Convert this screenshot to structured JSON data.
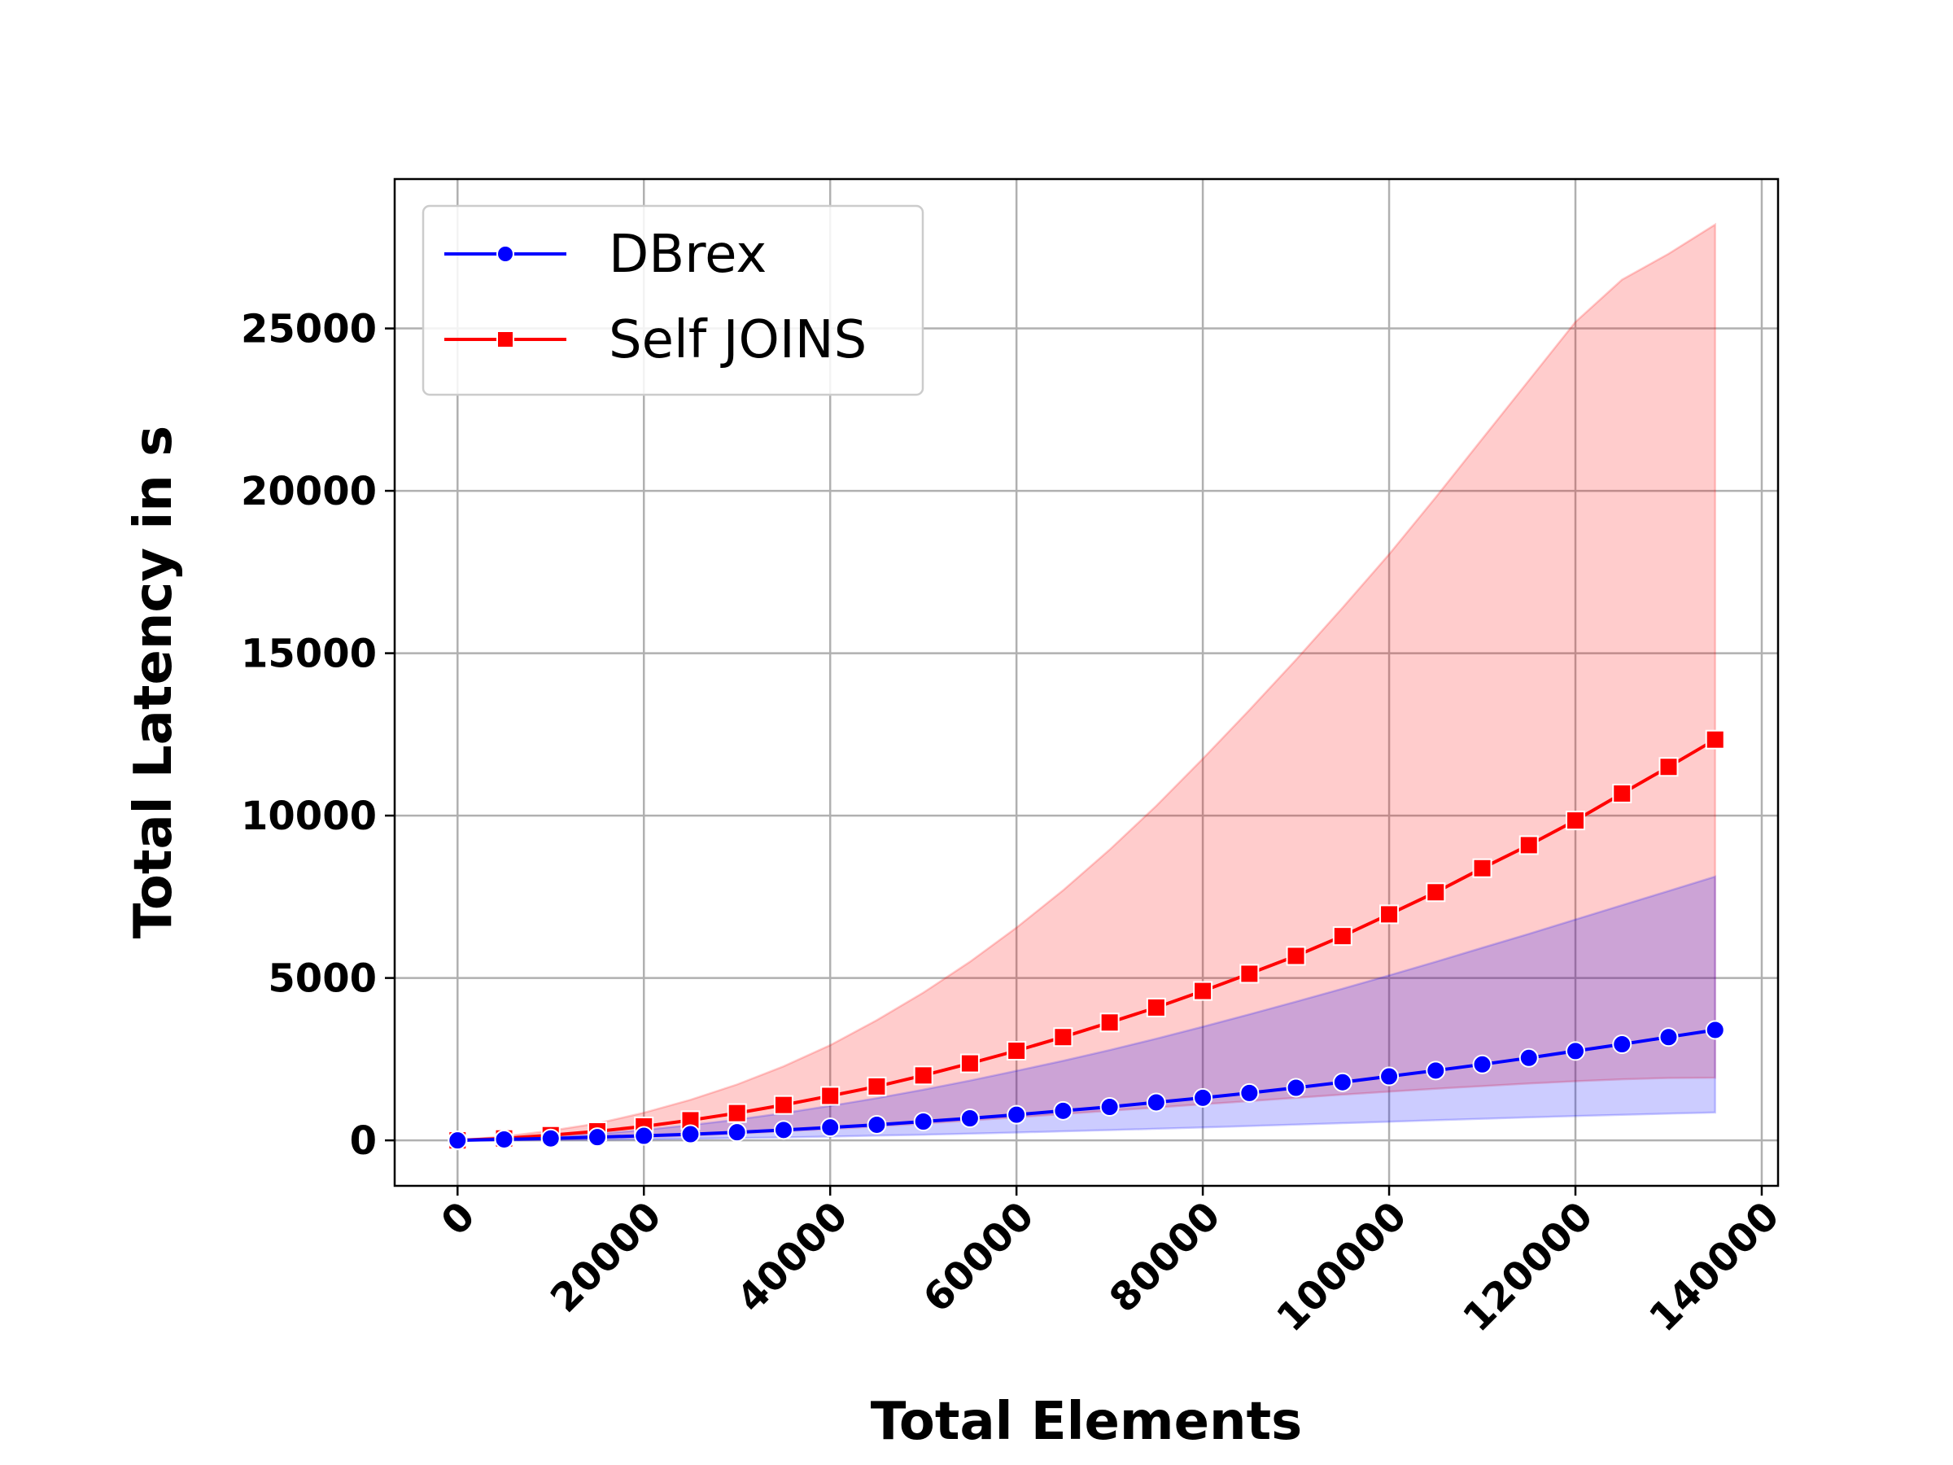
{
  "chart_data": {
    "type": "line",
    "title": "",
    "xlabel": "Total Elements",
    "ylabel": "Total Latency in s",
    "xlim": [
      -6750,
      141750
    ],
    "ylim": [
      -1400,
      29600
    ],
    "xticks": [
      0,
      20000,
      40000,
      60000,
      80000,
      100000,
      120000,
      140000
    ],
    "yticks": [
      0,
      5000,
      10000,
      15000,
      20000,
      25000
    ],
    "x_tick_labels": [
      "0",
      "20000",
      "40000",
      "60000",
      "80000",
      "100000",
      "120000",
      "140000"
    ],
    "y_tick_labels": [
      "0",
      "5000",
      "10000",
      "15000",
      "20000",
      "25000"
    ],
    "x_tick_rotation": 45,
    "grid": true,
    "legend_position": "upper-left",
    "x": [
      0,
      5000,
      10000,
      15000,
      20000,
      25000,
      30000,
      35000,
      40000,
      45000,
      50000,
      55000,
      60000,
      65000,
      70000,
      75000,
      80000,
      85000,
      90000,
      95000,
      100000,
      105000,
      110000,
      115000,
      120000,
      125000,
      130000,
      135000
    ],
    "series": [
      {
        "name": "DBrex",
        "color": "#0000ff",
        "marker": "circle",
        "values": [
          0,
          30,
          60,
          100,
          140,
          190,
          250,
          320,
          400,
          480,
          580,
          680,
          790,
          910,
          1030,
          1170,
          1310,
          1460,
          1620,
          1790,
          1970,
          2150,
          2340,
          2540,
          2750,
          2960,
          3180,
          3400
        ],
        "band_lower": [
          0,
          3,
          10,
          20,
          33,
          50,
          70,
          92,
          117,
          145,
          175,
          207,
          242,
          278,
          316,
          356,
          398,
          441,
          485,
          530,
          575,
          620,
          665,
          708,
          749,
          788,
          824,
          858
        ],
        "band_upper": [
          0,
          30,
          100,
          200,
          320,
          470,
          640,
          840,
          1060,
          1300,
          1560,
          1840,
          2140,
          2450,
          2780,
          3130,
          3500,
          3880,
          4270,
          4670,
          5080,
          5500,
          5930,
          6360,
          6800,
          7240,
          7680,
          8120
        ],
        "band_color": "#0000ff"
      },
      {
        "name": "Self JOINS",
        "color": "#ff0000",
        "marker": "square",
        "values": [
          0,
          60,
          160,
          280,
          430,
          620,
          840,
          1090,
          1370,
          1660,
          2000,
          2370,
          2760,
          3180,
          3630,
          4090,
          4600,
          5130,
          5680,
          6290,
          6960,
          7640,
          8380,
          9090,
          9850,
          10680,
          11500,
          12340
        ],
        "band_lower": [
          0,
          10,
          30,
          60,
          100,
          150,
          210,
          280,
          350,
          430,
          520,
          610,
          710,
          810,
          910,
          1010,
          1110,
          1210,
          1310,
          1410,
          1500,
          1590,
          1670,
          1750,
          1820,
          1880,
          1920,
          1930
        ],
        "band_upper": [
          0,
          120,
          300,
          520,
          850,
          1250,
          1720,
          2280,
          2930,
          3700,
          4550,
          5500,
          6550,
          7700,
          8950,
          10300,
          11750,
          13250,
          14800,
          16400,
          18050,
          19800,
          21600,
          23400,
          25200,
          26500,
          27300,
          28200
        ],
        "band_color": "#ff0000"
      }
    ]
  }
}
